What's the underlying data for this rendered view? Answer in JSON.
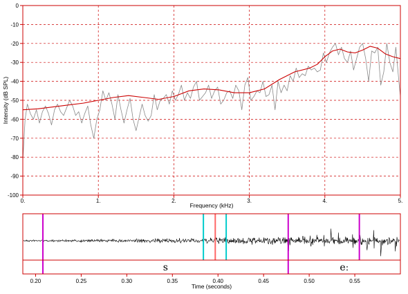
{
  "chart_data": [
    {
      "type": "line",
      "xlabel": "Frequency (kHz)",
      "ylabel": "Intensity (dB SPL)",
      "xlim": [
        0,
        5
      ],
      "ylim": [
        -100,
        0
      ],
      "x_ticks": [
        "0.",
        "1.",
        "2.",
        "3.",
        "4.",
        "5."
      ],
      "y_ticks": [
        "0",
        "-10",
        "-20",
        "-30",
        "-40",
        "-50",
        "-60",
        "-70",
        "-80",
        "-90",
        "-100"
      ],
      "grid": true,
      "colors": {
        "grid": "#cc0000",
        "frame": "#cc0000",
        "spectrum": "#888888",
        "envelope": "#cc0000"
      },
      "series": [
        {
          "style": "thin grey jagged line",
          "x": [
            0.0,
            0.03,
            0.06,
            0.1,
            0.14,
            0.18,
            0.22,
            0.26,
            0.3,
            0.34,
            0.38,
            0.42,
            0.46,
            0.5,
            0.54,
            0.58,
            0.62,
            0.66,
            0.7,
            0.74,
            0.78,
            0.82,
            0.86,
            0.9,
            0.94,
            0.98,
            1.02,
            1.06,
            1.1,
            1.14,
            1.18,
            1.22,
            1.26,
            1.3,
            1.34,
            1.38,
            1.42,
            1.46,
            1.5,
            1.54,
            1.58,
            1.62,
            1.66,
            1.7,
            1.74,
            1.78,
            1.82,
            1.86,
            1.9,
            1.94,
            1.98,
            2.02,
            2.06,
            2.1,
            2.14,
            2.18,
            2.22,
            2.26,
            2.3,
            2.34,
            2.38,
            2.42,
            2.46,
            2.5,
            2.54,
            2.58,
            2.62,
            2.66,
            2.7,
            2.74,
            2.78,
            2.82,
            2.86,
            2.9,
            2.94,
            2.98,
            3.02,
            3.06,
            3.1,
            3.14,
            3.18,
            3.22,
            3.26,
            3.3,
            3.34,
            3.38,
            3.42,
            3.46,
            3.5,
            3.54,
            3.58,
            3.62,
            3.66,
            3.7,
            3.74,
            3.78,
            3.82,
            3.86,
            3.9,
            3.94,
            3.98,
            4.02,
            4.06,
            4.1,
            4.14,
            4.18,
            4.22,
            4.26,
            4.3,
            4.34,
            4.38,
            4.42,
            4.46,
            4.5,
            4.54,
            4.58,
            4.62,
            4.66,
            4.7,
            4.74,
            4.78,
            4.82,
            4.86,
            4.9,
            4.94,
            4.98,
            5.0
          ],
          "y": [
            -82,
            -60,
            -52,
            -57,
            -60,
            -55,
            -62,
            -56,
            -53,
            -57,
            -63,
            -55,
            -52,
            -56,
            -58,
            -54,
            -50,
            -53,
            -58,
            -56,
            -62,
            -57,
            -53,
            -63,
            -70,
            -60,
            -55,
            -45,
            -50,
            -46,
            -52,
            -60,
            -47,
            -55,
            -62,
            -55,
            -49,
            -60,
            -66,
            -59,
            -52,
            -58,
            -61,
            -58,
            -47,
            -55,
            -50,
            -49,
            -47,
            -52,
            -45,
            -50,
            -47,
            -42,
            -50,
            -46,
            -49,
            -43,
            -40,
            -50,
            -48,
            -46,
            -42,
            -49,
            -45,
            -43,
            -52,
            -50,
            -46,
            -45,
            -49,
            -42,
            -45,
            -55,
            -42,
            -38,
            -50,
            -48,
            -45,
            -46,
            -40,
            -48,
            -47,
            -42,
            -55,
            -40,
            -46,
            -42,
            -45,
            -37,
            -40,
            -33,
            -38,
            -36,
            -37,
            -32,
            -34,
            -33,
            -35,
            -34,
            -25,
            -30,
            -25,
            -22,
            -20,
            -26,
            -22,
            -28,
            -30,
            -24,
            -34,
            -28,
            -22,
            -20,
            -28,
            -40,
            -24,
            -25,
            -22,
            -42,
            -35,
            -20,
            -30,
            -35,
            -22,
            -40,
            -48
          ]
        },
        {
          "style": "smooth red envelope",
          "x": [
            0.0,
            0.2,
            0.4,
            0.6,
            0.8,
            1.0,
            1.2,
            1.4,
            1.6,
            1.8,
            2.0,
            2.2,
            2.4,
            2.6,
            2.8,
            3.0,
            3.2,
            3.4,
            3.6,
            3.8,
            3.9,
            4.0,
            4.1,
            4.2,
            4.3,
            4.4,
            4.5,
            4.6,
            4.7,
            4.8,
            4.9,
            5.0
          ],
          "y": [
            -55,
            -54.5,
            -53.5,
            -52.5,
            -51.5,
            -50,
            -48.5,
            -47.5,
            -48.5,
            -49.5,
            -48,
            -45,
            -44,
            -44.5,
            -46,
            -46,
            -44,
            -39,
            -35,
            -33,
            -31,
            -27,
            -24,
            -23,
            -24.5,
            -25,
            -23.5,
            -21.5,
            -22.5,
            -25.5,
            -27,
            -28
          ]
        }
      ]
    },
    {
      "type": "waveform",
      "xlabel": "Time (seconds)",
      "xlim": [
        0.186,
        0.6
      ],
      "x_ticks": [
        "0.20",
        "0.25",
        "0.30",
        "0.35",
        "0.40",
        "0.45",
        "0.50",
        "0.55"
      ],
      "segments": [
        {
          "label": "s",
          "start": 0.208,
          "end": 0.477
        },
        {
          "label": "eː",
          "start": 0.477,
          "end": 0.6
        }
      ],
      "markers": [
        {
          "time": 0.208,
          "color": "#cc00cc"
        },
        {
          "time": 0.384,
          "color": "#00cccc"
        },
        {
          "time": 0.397,
          "color": "#ff6666"
        },
        {
          "time": 0.409,
          "color": "#00cccc"
        },
        {
          "time": 0.477,
          "color": "#cc00cc"
        },
        {
          "time": 0.555,
          "color": "#cc00cc"
        }
      ],
      "colors": {
        "frame": "#cc0000",
        "waveform": "#000000"
      }
    }
  ]
}
